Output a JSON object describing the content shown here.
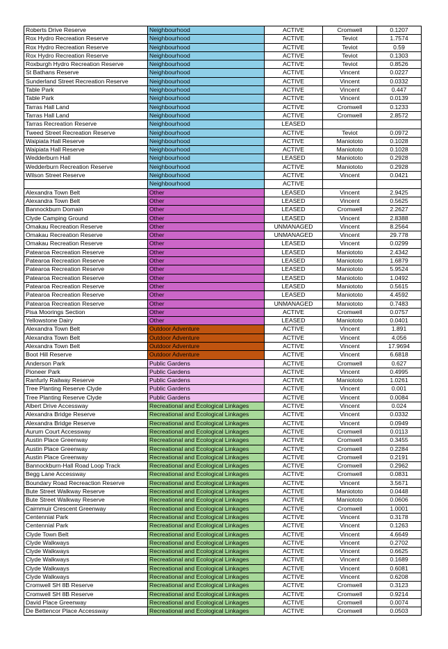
{
  "colors": {
    "Neighbourhood": "#8ecfe8",
    "Other": "#cc66c8",
    "Outdoor Adventure": "#c0540f",
    "Public Gardens": "#efbfee",
    "Recreational and Ecological Linkages": "#a8d99a"
  },
  "rows": [
    {
      "name": "Roberts Drive Reserve",
      "category": "Neighbourhood",
      "status": "ACTIVE",
      "area": "Cromwell",
      "size": "0.1207"
    },
    {
      "name": "Rox Hydro Recreation Reserve",
      "category": "Neighbourhood",
      "status": "ACTIVE",
      "area": "Teviot",
      "size": "1.7574"
    },
    {
      "name": "Rox Hydro Recreation Reserve",
      "category": "Neighbourhood",
      "status": "ACTIVE",
      "area": "Teviot",
      "size": "0.59"
    },
    {
      "name": "Rox Hydro Recreation Reserve",
      "category": "Neighbourhood",
      "status": "ACTIVE",
      "area": "Teviot",
      "size": "0.1303"
    },
    {
      "name": "Roxburgh Hydro Recreation Reserve",
      "category": "Neighbourhood",
      "status": "ACTIVE",
      "area": "Teviot",
      "size": "0.8526"
    },
    {
      "name": "St Bathans Reserve",
      "category": "Neighbourhood",
      "status": "ACTIVE",
      "area": "Vincent",
      "size": "0.0227"
    },
    {
      "name": "Sunderland Street Recreation Reserve",
      "category": "Neighbourhood",
      "status": "ACTIVE",
      "area": "Vincent",
      "size": "0.0332"
    },
    {
      "name": "Table Park",
      "category": "Neighbourhood",
      "status": "ACTIVE",
      "area": "Vincent",
      "size": "0.447"
    },
    {
      "name": "Table Park",
      "category": "Neighbourhood",
      "status": "ACTIVE",
      "area": "Vincent",
      "size": "0.0139"
    },
    {
      "name": "Tarras Hall Land",
      "category": "Neighbourhood",
      "status": "ACTIVE",
      "area": "Cromwell",
      "size": "0.1233"
    },
    {
      "name": "Tarras Hall Land",
      "category": "Neighbourhood",
      "status": "ACTIVE",
      "area": "Cromwell",
      "size": "2.8572"
    },
    {
      "name": "Tarras Recreation Reserve",
      "category": "Neighbourhood",
      "status": "LEASED",
      "area": "",
      "size": ""
    },
    {
      "name": "Tweed Street Recreation Reserve",
      "category": "Neighbourhood",
      "status": "ACTIVE",
      "area": "Teviot",
      "size": "0.0972"
    },
    {
      "name": "Waipiata Hall Reserve",
      "category": "Neighbourhood",
      "status": "ACTIVE",
      "area": "Maniototo",
      "size": "0.1028"
    },
    {
      "name": "Waipiata Hall Reserve",
      "category": "Neighbourhood",
      "status": "ACTIVE",
      "area": "Maniototo",
      "size": "0.1028"
    },
    {
      "name": "Wedderburn Hall",
      "category": "Neighbourhood",
      "status": "LEASED",
      "area": "Maniototo",
      "size": "0.2928"
    },
    {
      "name": "Wedderburn Recreation Reserve",
      "category": "Neighbourhood",
      "status": "ACTIVE",
      "area": "Maniototo",
      "size": "0.2928"
    },
    {
      "name": "Wilson Street Reserve",
      "category": "Neighbourhood",
      "status": "ACTIVE",
      "area": "Vincent",
      "size": "0.0421"
    },
    {
      "name": "",
      "category": "Neighbourhood",
      "status": "ACTIVE",
      "area": "",
      "size": ""
    },
    {
      "name": "Alexandra Town Belt",
      "category": "Other",
      "status": "LEASED",
      "area": "Vincent",
      "size": "2.9425"
    },
    {
      "name": "Alexandra Town Belt",
      "category": "Other",
      "status": "LEASED",
      "area": "Vincent",
      "size": "0.5625"
    },
    {
      "name": "Bannockburn Domain",
      "category": "Other",
      "status": "LEASED",
      "area": "Cromwell",
      "size": "2.2627"
    },
    {
      "name": "Clyde Camping Ground",
      "category": "Other",
      "status": "LEASED",
      "area": "Vincent",
      "size": "2.8388"
    },
    {
      "name": "Omakau Recreation Reserve",
      "category": "Other",
      "status": "UNMANAGED",
      "area": "Vincent",
      "size": "8.2564"
    },
    {
      "name": "Omakau Recreation Reserve",
      "category": "Other",
      "status": "UNMANAGED",
      "area": "Vincent",
      "size": "29.778"
    },
    {
      "name": "Omakau Recreation Reserve",
      "category": "Other",
      "status": "LEASED",
      "area": "Vincent",
      "size": "0.0299"
    },
    {
      "name": "Patearoa Recreation Reserve",
      "category": "Other",
      "status": "LEASED",
      "area": "Maniototo",
      "size": "2.4342"
    },
    {
      "name": "Patearoa Recreation Reserve",
      "category": "Other",
      "status": "LEASED",
      "area": "Maniototo",
      "size": "1.6879"
    },
    {
      "name": "Patearoa Recreation Reserve",
      "category": "Other",
      "status": "LEASED",
      "area": "Maniototo",
      "size": "5.9524"
    },
    {
      "name": "Patearoa Recreation Reserve",
      "category": "Other",
      "status": "LEASED",
      "area": "Maniototo",
      "size": "1.0492"
    },
    {
      "name": "Patearoa Recreation Reserve",
      "category": "Other",
      "status": "LEASED",
      "area": "Maniototo",
      "size": "0.5615"
    },
    {
      "name": "Patearoa Recreation Reserve",
      "category": "Other",
      "status": "LEASED",
      "area": "Maniototo",
      "size": "4.4592"
    },
    {
      "name": "Patearoa Recreation Reserve",
      "category": "Other",
      "status": "UNMANAGED",
      "area": "Maniototo",
      "size": "0.7483"
    },
    {
      "name": "Pisa Moorings Section",
      "category": "Other",
      "status": "ACTIVE",
      "area": "Cromwell",
      "size": "0.0757"
    },
    {
      "name": "Yellowstone Dairy",
      "category": "Other",
      "status": "LEASED",
      "area": "Maniototo",
      "size": "0.0401"
    },
    {
      "name": "Alexandra Town Belt",
      "category": "Outdoor Adventure",
      "status": "ACTIVE",
      "area": "Vincent",
      "size": "1.891"
    },
    {
      "name": "Alexandra Town Belt",
      "category": "Outdoor Adventure",
      "status": "ACTIVE",
      "area": "Vincent",
      "size": "4.056"
    },
    {
      "name": "Alexandra Town Belt",
      "category": "Outdoor Adventure",
      "status": "ACTIVE",
      "area": "Vincent",
      "size": "17.9694"
    },
    {
      "name": "Boot Hill Reserve",
      "category": "Outdoor Adventure",
      "status": "ACTIVE",
      "area": "Vincent",
      "size": "6.6818"
    },
    {
      "name": "Anderson Park",
      "category": "Public Gardens",
      "status": "ACTIVE",
      "area": "Cromwell",
      "size": "0.627"
    },
    {
      "name": "Pioneer Park",
      "category": "Public Gardens",
      "status": "ACTIVE",
      "area": "Vincent",
      "size": "0.4995"
    },
    {
      "name": "Ranfurly Railway Reserve",
      "category": "Public Gardens",
      "status": "ACTIVE",
      "area": "Maniototo",
      "size": "1.0261"
    },
    {
      "name": "Tree Planting Reserve Clyde",
      "category": "Public Gardens",
      "status": "ACTIVE",
      "area": "Vincent",
      "size": "0.001"
    },
    {
      "name": "Tree Planting Reserve Clyde",
      "category": "Public Gardens",
      "status": "ACTIVE",
      "area": "Vincent",
      "size": "0.0084"
    },
    {
      "name": "Albert Drive Accessway",
      "category": "Recreational and Ecological Linkages",
      "status": "ACTIVE",
      "area": "Vincent",
      "size": "0.024"
    },
    {
      "name": "Alexandra Bridge Reserve",
      "category": "Recreational and Ecological Linkages",
      "status": "ACTIVE",
      "area": "Vincent",
      "size": "0.0332"
    },
    {
      "name": "Alexandra Bridge Reserve",
      "category": "Recreational and Ecological Linkages",
      "status": "ACTIVE",
      "area": "Vincent",
      "size": "0.0949"
    },
    {
      "name": "Aurum Court Accessway",
      "category": "Recreational and Ecological Linkages",
      "status": "ACTIVE",
      "area": "Cromwell",
      "size": "0.0113"
    },
    {
      "name": "Austin Place Greenway",
      "category": "Recreational and Ecological Linkages",
      "status": "ACTIVE",
      "area": "Cromwell",
      "size": "0.3455"
    },
    {
      "name": "Austin Place Greenway",
      "category": "Recreational and Ecological Linkages",
      "status": "ACTIVE",
      "area": "Cromwell",
      "size": "0.2284"
    },
    {
      "name": "Austin Place Greenway",
      "category": "Recreational and Ecological Linkages",
      "status": "ACTIVE",
      "area": "Cromwell",
      "size": "0.2191"
    },
    {
      "name": "Bannockburn-Hall Road Loop Track",
      "category": "Recreational and Ecological Linkages",
      "status": "ACTIVE",
      "area": "Cromwell",
      "size": "0.2962"
    },
    {
      "name": "Begg Lane Accessway",
      "category": "Recreational and Ecological Linkages",
      "status": "ACTIVE",
      "area": "Cromwell",
      "size": "0.0831"
    },
    {
      "name": "Boundary Road Recreaction Reserve",
      "category": "Recreational and Ecological Linkages",
      "status": "ACTIVE",
      "area": "Vincent",
      "size": "3.5671"
    },
    {
      "name": "Bute Street Walkway Reserve",
      "category": "Recreational and Ecological Linkages",
      "status": "ACTIVE",
      "area": "Maniototo",
      "size": "0.0448"
    },
    {
      "name": "Bute Street Walkway Reserve",
      "category": "Recreational and Ecological Linkages",
      "status": "ACTIVE",
      "area": "Maniototo",
      "size": "0.0606"
    },
    {
      "name": "Cairnmuir Crescent Greenway",
      "category": "Recreational and Ecological Linkages",
      "status": "ACTIVE",
      "area": "Cromwell",
      "size": "1.0001"
    },
    {
      "name": "Centennial Park",
      "category": "Recreational and Ecological Linkages",
      "status": "ACTIVE",
      "area": "Vincent",
      "size": "0.3178"
    },
    {
      "name": "Centennial Park",
      "category": "Recreational and Ecological Linkages",
      "status": "ACTIVE",
      "area": "Vincent",
      "size": "0.1263"
    },
    {
      "name": "Clyde Town Belt",
      "category": "Recreational and Ecological Linkages",
      "status": "ACTIVE",
      "area": "Vincent",
      "size": "4.6649"
    },
    {
      "name": "Clyde Walkways",
      "category": "Recreational and Ecological Linkages",
      "status": "ACTIVE",
      "area": "Vincent",
      "size": "0.2702"
    },
    {
      "name": "Clyde Walkways",
      "category": "Recreational and Ecological Linkages",
      "status": "ACTIVE",
      "area": "Vincent",
      "size": "0.6625"
    },
    {
      "name": "Clyde Walkways",
      "category": "Recreational and Ecological Linkages",
      "status": "ACTIVE",
      "area": "Vincent",
      "size": "0.1689"
    },
    {
      "name": "Clyde Walkways",
      "category": "Recreational and Ecological Linkages",
      "status": "ACTIVE",
      "area": "Vincent",
      "size": "0.6081"
    },
    {
      "name": "Clyde Walkways",
      "category": "Recreational and Ecological Linkages",
      "status": "ACTIVE",
      "area": "Vincent",
      "size": "0.6208"
    },
    {
      "name": "Cromwell SH 8B Reserve",
      "category": "Recreational and Ecological Linkages",
      "status": "ACTIVE",
      "area": "Cromwell",
      "size": "0.3123"
    },
    {
      "name": "Cromwell SH 8B Reserve",
      "category": "Recreational and Ecological Linkages",
      "status": "ACTIVE",
      "area": "Cromwell",
      "size": "0.9214"
    },
    {
      "name": "David Place Greenway",
      "category": "Recreational and Ecological Linkages",
      "status": "ACTIVE",
      "area": "Cromwell",
      "size": "0.0074"
    },
    {
      "name": "De Bettencor Place Accessway",
      "category": "Recreational and Ecological Linkages",
      "status": "ACTIVE",
      "area": "Cromwell",
      "size": "0.0503"
    }
  ]
}
